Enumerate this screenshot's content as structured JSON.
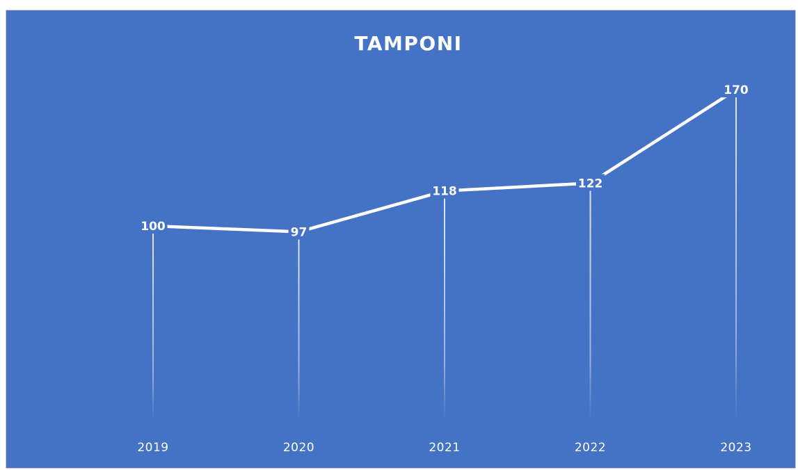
{
  "chart_data": {
    "type": "line",
    "title": "TAMPONI",
    "categories": [
      "2019",
      "2020",
      "2021",
      "2022",
      "2023"
    ],
    "series": [
      {
        "values": [
          100,
          97,
          118,
          122,
          170
        ]
      }
    ],
    "data_labels": [
      "100",
      "97",
      "118",
      "122",
      "170"
    ],
    "xlabel": "",
    "ylabel": "",
    "ylim": [
      0,
      200
    ],
    "grid": false,
    "drop_lines": true,
    "legend": "none",
    "colors": {
      "background": "#4472c4",
      "line": "#ffffff",
      "text": "#ffffff"
    }
  }
}
